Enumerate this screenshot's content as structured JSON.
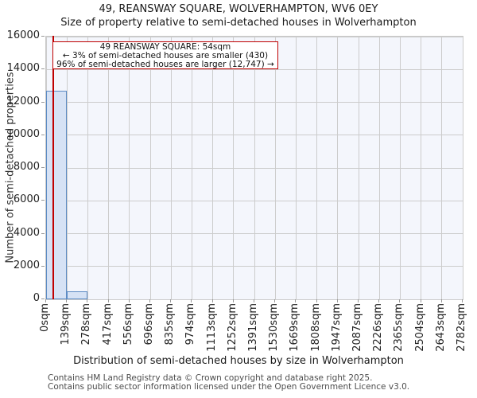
{
  "title": {
    "line1": "49, REANSWAY SQUARE, WOLVERHAMPTON, WV6 0EY",
    "line2": "Size of property relative to semi-detached houses in Wolverhampton"
  },
  "annotation": {
    "line1": "49 REANSWAY SQUARE: 54sqm",
    "line2": "← 3% of semi-detached houses are smaller (430)",
    "line3": "96% of semi-detached houses are larger (12,747) →"
  },
  "chart_data": {
    "type": "bar",
    "title": "49, REANSWAY SQUARE, WOLVERHAMPTON, WV6 0EY",
    "subtitle": "Size of property relative to semi-detached houses in Wolverhampton",
    "xlabel": "Distribution of semi-detached houses by size in Wolverhampton",
    "ylabel": "Number of semi-detached properties",
    "categories": [
      "0sqm",
      "139sqm",
      "278sqm",
      "417sqm",
      "556sqm",
      "696sqm",
      "835sqm",
      "974sqm",
      "1113sqm",
      "1252sqm",
      "1391sqm",
      "1530sqm",
      "1669sqm",
      "1808sqm",
      "1947sqm",
      "2087sqm",
      "2226sqm",
      "2365sqm",
      "2504sqm",
      "2643sqm",
      "2782sqm"
    ],
    "values": [
      12700,
      500,
      0,
      0,
      0,
      0,
      0,
      0,
      0,
      0,
      0,
      0,
      0,
      0,
      0,
      0,
      0,
      0,
      0,
      0
    ],
    "ylim": [
      0,
      16000
    ],
    "ytick_step": 2000,
    "grid": true,
    "legend": "none",
    "marker": {
      "label": "49 REANSWAY SQUARE",
      "value_sqm": 54,
      "axis_max_sqm": 2782,
      "smaller_pct": "3%",
      "smaller_count": 430,
      "larger_pct": "96%",
      "larger_count": "12,747"
    }
  },
  "colors": {
    "marker_red": "#c00000",
    "bar_fill": "#d6e2f5",
    "bar_edge": "#5c8bc4",
    "grid": "#cccccc",
    "plot_bg": "#f4f6fc",
    "figure_bg": "#ffffff"
  },
  "footer": {
    "line1": "Contains HM Land Registry data © Crown copyright and database right 2025.",
    "line2": "Contains public sector information licensed under the Open Government Licence v3.0."
  }
}
